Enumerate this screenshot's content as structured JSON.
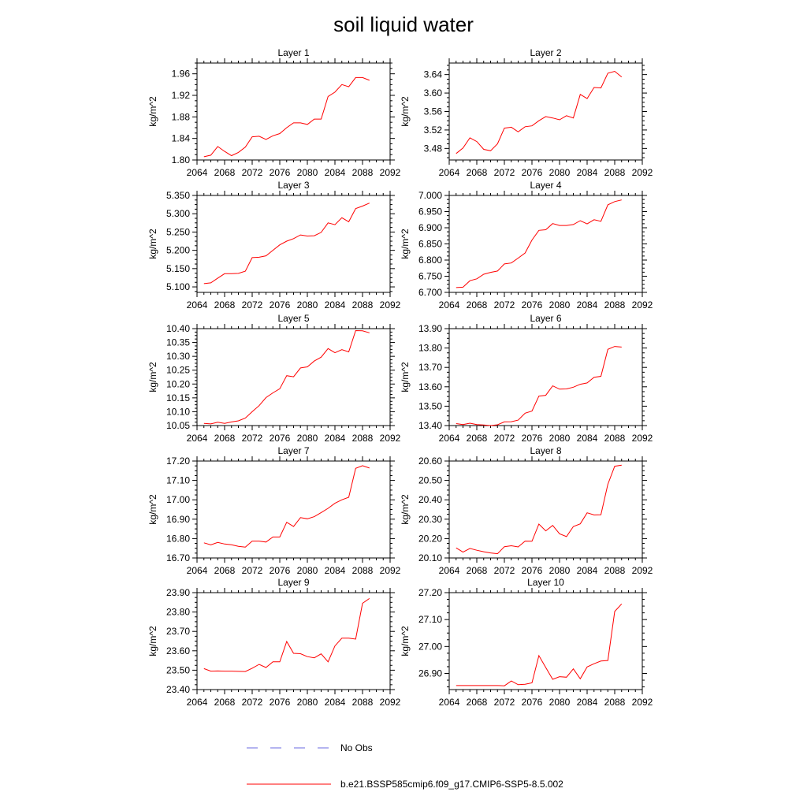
{
  "title": "soil liquid water",
  "legend": {
    "obs_label": "No Obs",
    "obs_color": "#6a6ae0",
    "model_label": "b.e21.BSSP585cmip6.f09_g17.CMIP6-SSP5-8.5.002",
    "model_color": "#ff0000"
  },
  "chart_data": [
    {
      "type": "line",
      "title": "Layer 1",
      "ylabel": "kg/m^2",
      "xlim": [
        2064,
        2092
      ],
      "xticks": [
        2064,
        2068,
        2072,
        2076,
        2080,
        2084,
        2088,
        2092
      ],
      "ylim": [
        1.8,
        1.98
      ],
      "yticks": [
        1.8,
        1.84,
        1.88,
        1.92,
        1.96
      ],
      "ydec": 2,
      "x": [
        2065,
        2066,
        2067,
        2068,
        2069,
        2070,
        2071,
        2072,
        2073,
        2074,
        2075,
        2076,
        2077,
        2078,
        2079,
        2080,
        2081,
        2082,
        2083,
        2084,
        2085,
        2086,
        2087,
        2088,
        2089
      ],
      "series": [
        {
          "name": "b.e21.BSSP585cmip6.f09_g17.CMIP6-SSP5-8.5.002",
          "values": [
            1.806,
            1.809,
            1.825,
            1.816,
            1.808,
            1.814,
            1.824,
            1.843,
            1.844,
            1.838,
            1.845,
            1.849,
            1.86,
            1.869,
            1.869,
            1.866,
            1.876,
            1.876,
            1.918,
            1.926,
            1.94,
            1.936,
            1.953,
            1.953,
            1.948
          ]
        }
      ]
    },
    {
      "type": "line",
      "title": "Layer 2",
      "ylabel": "kg/m^2",
      "xlim": [
        2064,
        2092
      ],
      "xticks": [
        2064,
        2068,
        2072,
        2076,
        2080,
        2084,
        2088,
        2092
      ],
      "ylim": [
        3.455,
        3.665
      ],
      "yticks": [
        3.48,
        3.52,
        3.56,
        3.6,
        3.64
      ],
      "ydec": 2,
      "x": [
        2065,
        2066,
        2067,
        2068,
        2069,
        2070,
        2071,
        2072,
        2073,
        2074,
        2075,
        2076,
        2077,
        2078,
        2079,
        2080,
        2081,
        2082,
        2083,
        2084,
        2085,
        2086,
        2087,
        2088,
        2089
      ],
      "series": [
        {
          "name": "b.e21.BSSP585cmip6.f09_g17.CMIP6-SSP5-8.5.002",
          "values": [
            3.469,
            3.481,
            3.503,
            3.495,
            3.478,
            3.475,
            3.49,
            3.524,
            3.526,
            3.516,
            3.527,
            3.529,
            3.54,
            3.549,
            3.546,
            3.542,
            3.551,
            3.546,
            3.597,
            3.588,
            3.612,
            3.611,
            3.643,
            3.647,
            3.635
          ]
        }
      ]
    },
    {
      "type": "line",
      "title": "Layer 3",
      "ylabel": "kg/m^2",
      "xlim": [
        2064,
        2092
      ],
      "xticks": [
        2064,
        2068,
        2072,
        2076,
        2080,
        2084,
        2088,
        2092
      ],
      "ylim": [
        5.085,
        5.35
      ],
      "yticks": [
        5.1,
        5.15,
        5.2,
        5.25,
        5.3,
        5.35
      ],
      "ydec": 3,
      "x": [
        2065,
        2066,
        2067,
        2068,
        2069,
        2070,
        2071,
        2072,
        2073,
        2074,
        2075,
        2076,
        2077,
        2078,
        2079,
        2080,
        2081,
        2082,
        2083,
        2084,
        2085,
        2086,
        2087,
        2088,
        2089
      ],
      "series": [
        {
          "name": "b.e21.BSSP585cmip6.f09_g17.CMIP6-SSP5-8.5.002",
          "values": [
            5.109,
            5.111,
            5.124,
            5.136,
            5.136,
            5.137,
            5.143,
            5.18,
            5.181,
            5.185,
            5.2,
            5.215,
            5.225,
            5.232,
            5.242,
            5.239,
            5.24,
            5.249,
            5.275,
            5.27,
            5.289,
            5.278,
            5.314,
            5.321,
            5.329
          ]
        }
      ]
    },
    {
      "type": "line",
      "title": "Layer 4",
      "ylabel": "kg/m^2",
      "xlim": [
        2064,
        2092
      ],
      "xticks": [
        2064,
        2068,
        2072,
        2076,
        2080,
        2084,
        2088,
        2092
      ],
      "ylim": [
        6.7,
        7.0
      ],
      "yticks": [
        6.7,
        6.75,
        6.8,
        6.85,
        6.9,
        6.95,
        7.0
      ],
      "ydec": 3,
      "x": [
        2065,
        2066,
        2067,
        2068,
        2069,
        2070,
        2071,
        2072,
        2073,
        2074,
        2075,
        2076,
        2077,
        2078,
        2079,
        2080,
        2081,
        2082,
        2083,
        2084,
        2085,
        2086,
        2087,
        2088,
        2089
      ],
      "series": [
        {
          "name": "b.e21.BSSP585cmip6.f09_g17.CMIP6-SSP5-8.5.002",
          "values": [
            6.715,
            6.716,
            6.736,
            6.742,
            6.756,
            6.762,
            6.766,
            6.788,
            6.791,
            6.806,
            6.822,
            6.862,
            6.892,
            6.894,
            6.913,
            6.907,
            6.907,
            6.91,
            6.922,
            6.912,
            6.925,
            6.92,
            6.971,
            6.981,
            6.986
          ]
        }
      ]
    },
    {
      "type": "line",
      "title": "Layer 5",
      "ylabel": "kg/m^2",
      "xlim": [
        2064,
        2092
      ],
      "xticks": [
        2064,
        2068,
        2072,
        2076,
        2080,
        2084,
        2088,
        2092
      ],
      "ylim": [
        10.05,
        10.4
      ],
      "yticks": [
        10.05,
        10.1,
        10.15,
        10.2,
        10.25,
        10.3,
        10.35,
        10.4
      ],
      "ydec": 2,
      "x": [
        2065,
        2066,
        2067,
        2068,
        2069,
        2070,
        2071,
        2072,
        2073,
        2074,
        2075,
        2076,
        2077,
        2078,
        2079,
        2080,
        2081,
        2082,
        2083,
        2084,
        2085,
        2086,
        2087,
        2088,
        2089
      ],
      "series": [
        {
          "name": "b.e21.BSSP585cmip6.f09_g17.CMIP6-SSP5-8.5.002",
          "values": [
            10.058,
            10.056,
            10.062,
            10.058,
            10.063,
            10.067,
            10.077,
            10.1,
            10.122,
            10.151,
            10.168,
            10.183,
            10.23,
            10.226,
            10.258,
            10.262,
            10.283,
            10.297,
            10.328,
            10.313,
            10.324,
            10.316,
            10.393,
            10.392,
            10.385
          ]
        }
      ]
    },
    {
      "type": "line",
      "title": "Layer 6",
      "ylabel": "kg/m^2",
      "xlim": [
        2064,
        2092
      ],
      "xticks": [
        2064,
        2068,
        2072,
        2076,
        2080,
        2084,
        2088,
        2092
      ],
      "ylim": [
        13.4,
        13.9
      ],
      "yticks": [
        13.4,
        13.5,
        13.6,
        13.7,
        13.8,
        13.9
      ],
      "ydec": 2,
      "x": [
        2065,
        2066,
        2067,
        2068,
        2069,
        2070,
        2071,
        2072,
        2073,
        2074,
        2075,
        2076,
        2077,
        2078,
        2079,
        2080,
        2081,
        2082,
        2083,
        2084,
        2085,
        2086,
        2087,
        2088,
        2089
      ],
      "series": [
        {
          "name": "b.e21.BSSP585cmip6.f09_g17.CMIP6-SSP5-8.5.002",
          "values": [
            13.41,
            13.405,
            13.412,
            13.405,
            13.403,
            13.4,
            13.404,
            13.419,
            13.42,
            13.428,
            13.464,
            13.475,
            13.552,
            13.556,
            13.605,
            13.588,
            13.589,
            13.598,
            13.613,
            13.62,
            13.649,
            13.654,
            13.793,
            13.808,
            13.805
          ]
        }
      ]
    },
    {
      "type": "line",
      "title": "Layer 7",
      "ylabel": "kg/m^2",
      "xlim": [
        2064,
        2092
      ],
      "xticks": [
        2064,
        2068,
        2072,
        2076,
        2080,
        2084,
        2088,
        2092
      ],
      "ylim": [
        16.7,
        17.2
      ],
      "yticks": [
        16.7,
        16.8,
        16.9,
        17.0,
        17.1,
        17.2
      ],
      "ydec": 2,
      "x": [
        2065,
        2066,
        2067,
        2068,
        2069,
        2070,
        2071,
        2072,
        2073,
        2074,
        2075,
        2076,
        2077,
        2078,
        2079,
        2080,
        2081,
        2082,
        2083,
        2084,
        2085,
        2086,
        2087,
        2088,
        2089
      ],
      "series": [
        {
          "name": "b.e21.BSSP585cmip6.f09_g17.CMIP6-SSP5-8.5.002",
          "values": [
            16.778,
            16.768,
            16.78,
            16.772,
            16.768,
            16.76,
            16.756,
            16.787,
            16.787,
            16.782,
            16.808,
            16.808,
            16.884,
            16.862,
            16.908,
            16.902,
            16.913,
            16.934,
            16.956,
            16.982,
            17.0,
            17.013,
            17.162,
            17.176,
            17.164
          ]
        }
      ]
    },
    {
      "type": "line",
      "title": "Layer 8",
      "ylabel": "kg/m^2",
      "xlim": [
        2064,
        2092
      ],
      "xticks": [
        2064,
        2068,
        2072,
        2076,
        2080,
        2084,
        2088,
        2092
      ],
      "ylim": [
        20.1,
        20.6
      ],
      "yticks": [
        20.1,
        20.2,
        20.3,
        20.4,
        20.5,
        20.6
      ],
      "ydec": 2,
      "x": [
        2065,
        2066,
        2067,
        2068,
        2069,
        2070,
        2071,
        2072,
        2073,
        2074,
        2075,
        2076,
        2077,
        2078,
        2079,
        2080,
        2081,
        2082,
        2083,
        2084,
        2085,
        2086,
        2087,
        2088,
        2089
      ],
      "series": [
        {
          "name": "b.e21.BSSP585cmip6.f09_g17.CMIP6-SSP5-8.5.002",
          "values": [
            20.152,
            20.13,
            20.149,
            20.14,
            20.132,
            20.126,
            20.122,
            20.158,
            20.163,
            20.157,
            20.187,
            20.186,
            20.275,
            20.24,
            20.268,
            20.225,
            20.21,
            20.262,
            20.276,
            20.333,
            20.322,
            20.323,
            20.48,
            20.573,
            20.579
          ]
        }
      ]
    },
    {
      "type": "line",
      "title": "Layer 9",
      "ylabel": "kg/m^2",
      "xlim": [
        2064,
        2092
      ],
      "xticks": [
        2064,
        2068,
        2072,
        2076,
        2080,
        2084,
        2088,
        2092
      ],
      "ylim": [
        23.4,
        23.9
      ],
      "yticks": [
        23.4,
        23.5,
        23.6,
        23.7,
        23.8,
        23.9
      ],
      "ydec": 2,
      "x": [
        2065,
        2066,
        2067,
        2068,
        2069,
        2070,
        2071,
        2072,
        2073,
        2074,
        2075,
        2076,
        2077,
        2078,
        2079,
        2080,
        2081,
        2082,
        2083,
        2084,
        2085,
        2086,
        2087,
        2088,
        2089
      ],
      "series": [
        {
          "name": "b.e21.BSSP585cmip6.f09_g17.CMIP6-SSP5-8.5.002",
          "values": [
            23.508,
            23.495,
            23.496,
            23.495,
            23.495,
            23.494,
            23.493,
            23.51,
            23.53,
            23.514,
            23.543,
            23.543,
            23.648,
            23.587,
            23.585,
            23.57,
            23.564,
            23.584,
            23.543,
            23.625,
            23.665,
            23.665,
            23.66,
            23.845,
            23.87
          ]
        }
      ]
    },
    {
      "type": "line",
      "title": "Layer 10",
      "ylabel": "kg/m^2",
      "xlim": [
        2064,
        2092
      ],
      "xticks": [
        2064,
        2068,
        2072,
        2076,
        2080,
        2084,
        2088,
        2092
      ],
      "ylim": [
        26.84,
        27.2
      ],
      "yticks": [
        26.9,
        27.0,
        27.1,
        27.2
      ],
      "ydec": 2,
      "x": [
        2065,
        2066,
        2067,
        2068,
        2069,
        2070,
        2071,
        2072,
        2073,
        2074,
        2075,
        2076,
        2077,
        2078,
        2079,
        2080,
        2081,
        2082,
        2083,
        2084,
        2085,
        2086,
        2087,
        2088,
        2089
      ],
      "series": [
        {
          "name": "b.e21.BSSP585cmip6.f09_g17.CMIP6-SSP5-8.5.002",
          "values": [
            26.855,
            26.855,
            26.855,
            26.855,
            26.855,
            26.855,
            26.855,
            26.854,
            26.872,
            26.858,
            26.86,
            26.865,
            26.966,
            26.922,
            26.878,
            26.888,
            26.886,
            26.917,
            26.88,
            26.924,
            26.936,
            26.946,
            26.948,
            27.13,
            27.158
          ]
        }
      ]
    }
  ]
}
